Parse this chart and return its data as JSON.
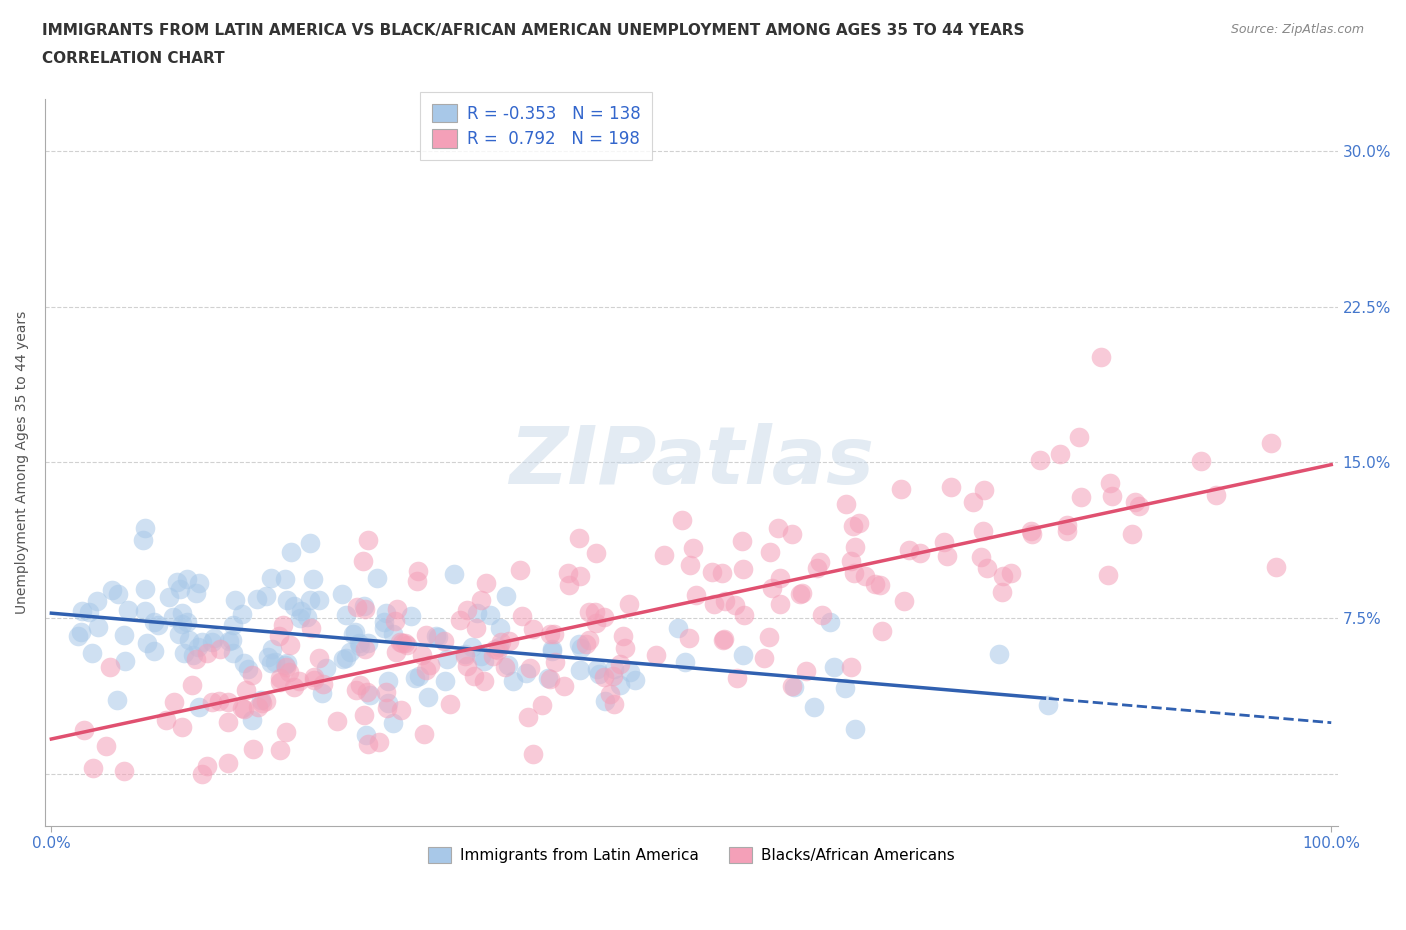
{
  "title_line1": "IMMIGRANTS FROM LATIN AMERICA VS BLACK/AFRICAN AMERICAN UNEMPLOYMENT AMONG AGES 35 TO 44 YEARS",
  "title_line2": "CORRELATION CHART",
  "source_text": "Source: ZipAtlas.com",
  "ylabel": "Unemployment Among Ages 35 to 44 years",
  "x_min": 0.0,
  "x_max": 1.0,
  "y_min": -0.025,
  "y_max": 0.325,
  "yticks": [
    0.0,
    0.075,
    0.15,
    0.225,
    0.3
  ],
  "ytick_labels": [
    "",
    "7.5%",
    "15.0%",
    "22.5%",
    "30.0%"
  ],
  "xtick_labels": [
    "0.0%",
    "100.0%"
  ],
  "xtick_positions": [
    0.0,
    1.0
  ],
  "color_blue": "#A8C8E8",
  "color_pink": "#F4A0B8",
  "color_blue_line": "#3060B0",
  "color_pink_line": "#E05070",
  "watermark_text": "ZIPatlas",
  "legend1_label": "Immigrants from Latin America",
  "legend2_label": "Blacks/African Americans",
  "grid_color": "#CCCCCC",
  "background_color": "#FFFFFF",
  "blue_seed": 42,
  "pink_seed": 123,
  "blue_n": 138,
  "pink_n": 198,
  "blue_R": -0.353,
  "pink_R": 0.792,
  "title_color": "#333333",
  "source_color": "#888888",
  "tick_color": "#4477CC",
  "legend_text_color": "#3366CC"
}
